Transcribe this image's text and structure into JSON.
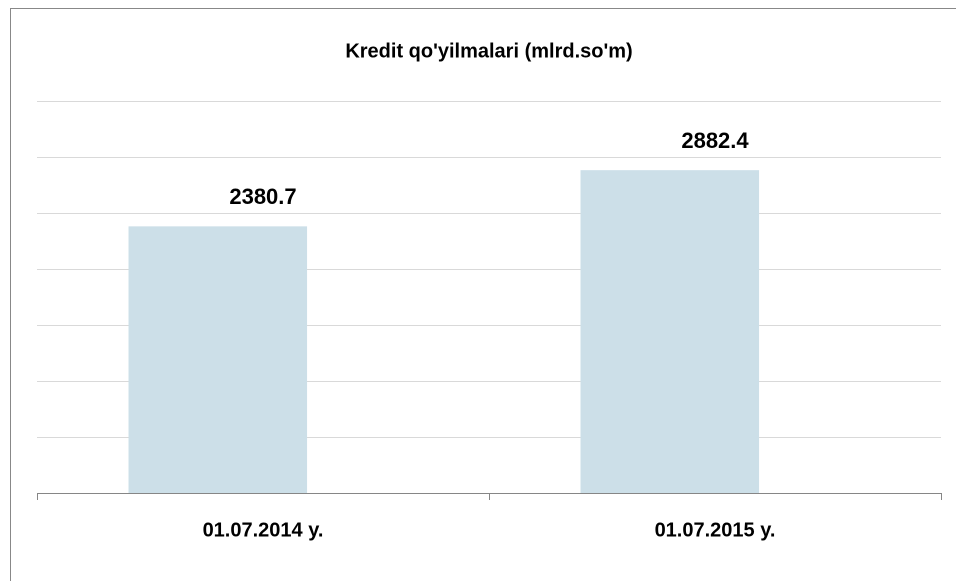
{
  "chart_data": {
    "type": "bar",
    "title": "Kredit qo'yilmalari (mlrd.so'm)",
    "categories": [
      "01.07.2014 y.",
      "01.07.2015 y."
    ],
    "values": [
      2380.7,
      2882.4
    ],
    "color": "#ccdfe8",
    "ylim": [
      0,
      3500
    ],
    "yticks": [
      0,
      500,
      1000,
      1500,
      2000,
      2500,
      3000,
      3500
    ],
    "grid": true
  }
}
